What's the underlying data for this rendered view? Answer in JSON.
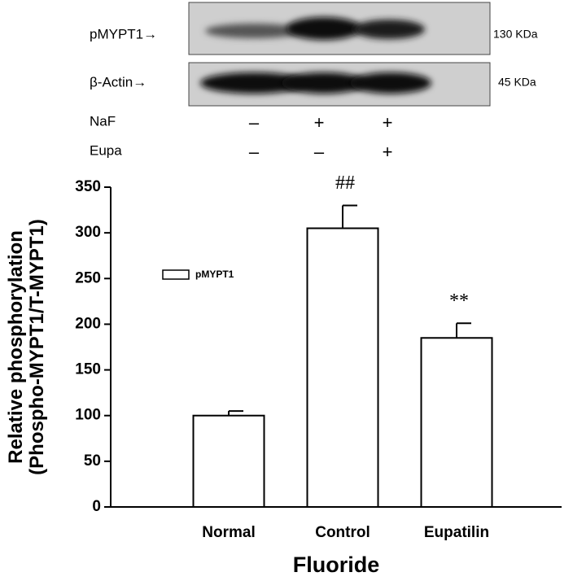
{
  "blot": {
    "bands": [
      "pMYPT1→",
      "β-Actin→"
    ],
    "sizes": [
      "130 KDa",
      "45 KDa"
    ],
    "treatments": [
      {
        "name": "NaF",
        "signs": [
          "–",
          "+",
          "+"
        ]
      },
      {
        "name": "Eupa",
        "signs": [
          "–",
          "–",
          "+"
        ]
      }
    ]
  },
  "chart_data": {
    "type": "bar",
    "ylabel": [
      "Relative phosphorylation",
      "(Phospho-MYPT1/T-MYPT1)"
    ],
    "xlabel": "Fluoride",
    "categories": [
      "Normal",
      "Control",
      "Eupatilin"
    ],
    "series": [
      {
        "name": "pMYPT1",
        "color": "#ffffff",
        "values": [
          100,
          305,
          185
        ],
        "errors": [
          5,
          25,
          16
        ]
      }
    ],
    "significance": [
      null,
      "##",
      "**"
    ],
    "ylim": [
      0,
      350
    ],
    "yticks": [
      0,
      50,
      100,
      150,
      200,
      250,
      300,
      350
    ]
  }
}
